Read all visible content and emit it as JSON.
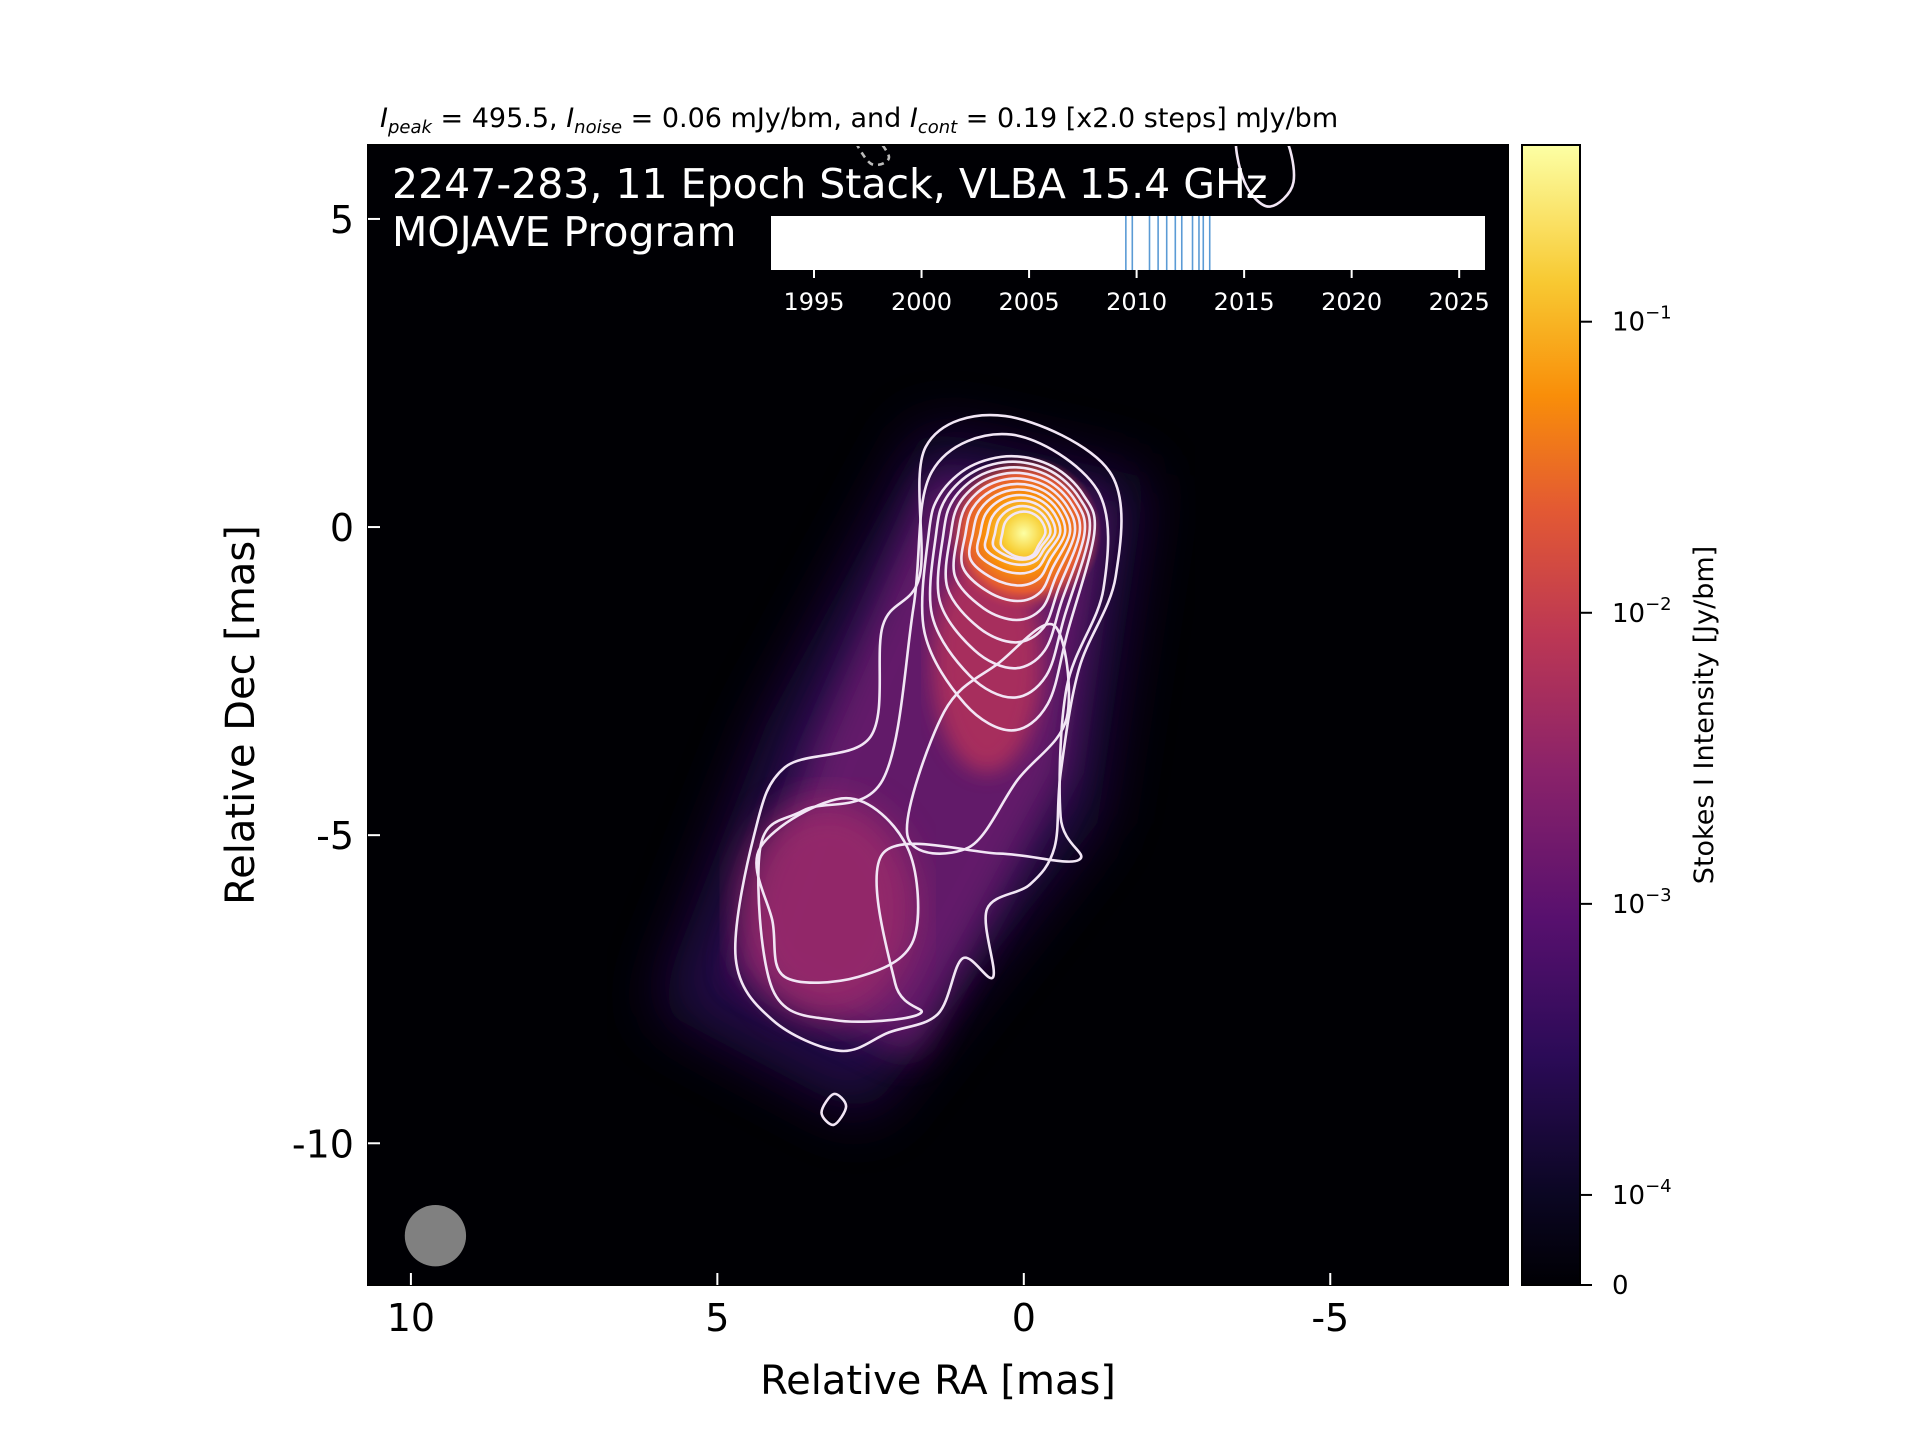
{
  "chart_data": {
    "type": "heatmap",
    "title": {
      "peak_symbol": "I",
      "peak_sub": "peak",
      "peak_value": "495.5",
      "noise_symbol": "I",
      "noise_sub": "noise",
      "noise_value": "0.06 mJy/bm, and ",
      "cont_symbol": "I",
      "cont_sub": "cont",
      "cont_value": "0.19 [x2.0 steps] mJy/bm"
    },
    "source_label": "2247-283, 11 Epoch Stack, VLBA 15.4 GHz",
    "program_label": "MOJAVE Program",
    "xlabel": "Relative RA [mas]",
    "ylabel": "Relative Dec [mas]",
    "x_ticks": [
      10,
      5,
      0,
      -5
    ],
    "y_ticks": [
      5,
      0,
      -5,
      -10
    ],
    "xlim": [
      10.7,
      -7.9
    ],
    "ylim": [
      -12.3,
      6.2
    ],
    "x_ticks_text": [
      "10",
      "5",
      "0",
      "-5"
    ],
    "y_ticks_text": [
      "5",
      "0",
      "-5",
      "-10"
    ],
    "colorbar": {
      "label": "Stokes I Intensity [Jy/bm]",
      "colormap": "inferno",
      "scale": "log",
      "ticks": [
        {
          "value": 0.1,
          "mantissa": "10",
          "exp": "−1"
        },
        {
          "value": 0.01,
          "mantissa": "10",
          "exp": "−2"
        },
        {
          "value": 0.001,
          "mantissa": "10",
          "exp": "−3"
        },
        {
          "value": 0.0001,
          "mantissa": "10",
          "exp": "−4"
        },
        {
          "value": 0,
          "mantissa": "0",
          "exp": ""
        }
      ]
    },
    "contours": {
      "base_mJy": 0.19,
      "step_factor": 2.0,
      "color": "#ffffff"
    },
    "beam": {
      "ra": 9.6,
      "dec": -11.5,
      "diameter_mas": 1.0,
      "color": "#808080"
    },
    "epoch_timeline": {
      "range": [
        1993,
        2026.2
      ],
      "ticks": [
        1995,
        2000,
        2005,
        2010,
        2015,
        2020,
        2025
      ],
      "ticks_text": [
        "1995",
        "2000",
        "2005",
        "2010",
        "2015",
        "2020",
        "2025"
      ],
      "epochs": [
        2009.5,
        2009.8,
        2010.6,
        2011.0,
        2011.4,
        2011.8,
        2012.1,
        2012.6,
        2012.9,
        2013.1,
        2013.4
      ],
      "epoch_color": "#5b9bd5"
    }
  }
}
